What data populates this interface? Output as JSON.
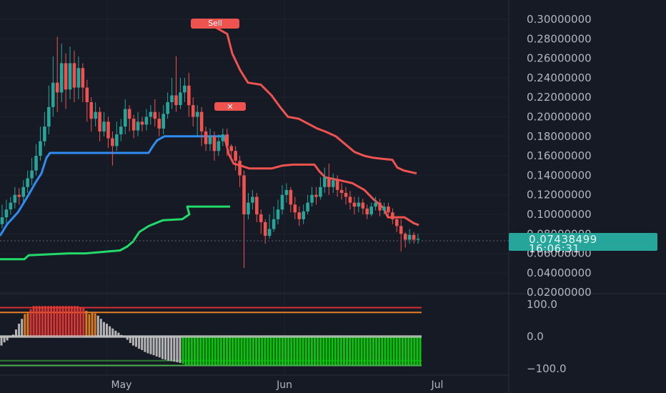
{
  "chart_data": [
    {
      "type": "candlestick",
      "title": "",
      "y_axis": {
        "ticks": [
          "0.30000000",
          "0.28000000",
          "0.26000000",
          "0.24000000",
          "0.22000000",
          "0.20000000",
          "0.18000000",
          "0.16000000",
          "0.14000000",
          "0.12000000",
          "0.10000000",
          "0.08000000",
          "0.06000000",
          "0.04000000",
          "0.02000000"
        ],
        "range": [
          0.016,
          0.322
        ]
      },
      "x_axis": {
        "ticks": [
          "May",
          "Jun",
          "Jul"
        ]
      },
      "last_price": "0.07438499",
      "countdown": "16:06:31",
      "signal_labels": {
        "sell": "Sell",
        "marker": "✕"
      },
      "series": [
        {
          "name": "",
          "color": "#ef5350",
          "role": "upper-band",
          "points": [
            [
              0.292,
              301
            ],
            [
              0.285,
              318
            ],
            [
              0.265,
              325
            ],
            [
              0.248,
              336
            ],
            [
              0.235,
              347
            ],
            [
              0.233,
              365
            ],
            [
              0.222,
              380
            ],
            [
              0.21,
              392
            ],
            [
              0.2,
              403
            ],
            [
              0.198,
              418
            ],
            [
              0.193,
              431
            ],
            [
              0.188,
              444
            ],
            [
              0.185,
              455
            ],
            [
              0.18,
              470
            ],
            [
              0.172,
              483
            ],
            [
              0.164,
              496
            ],
            [
              0.16,
              510
            ],
            [
              0.158,
              522
            ],
            [
              0.157,
              535
            ],
            [
              0.156,
              549
            ],
            [
              0.148,
              556
            ],
            [
              0.145,
              565
            ],
            [
              0.142,
              583
            ]
          ]
        },
        {
          "name": "",
          "color": "#ef5350",
          "role": "stop-line",
          "points": [
            [
              0.18,
              314
            ],
            [
              0.162,
              320
            ],
            [
              0.152,
              327
            ],
            [
              0.15,
              337
            ],
            [
              0.147,
              349
            ],
            [
              0.147,
              380
            ],
            [
              0.15,
              395
            ],
            [
              0.151,
              410
            ],
            [
              0.151,
              440
            ],
            [
              0.144,
              447
            ],
            [
              0.138,
              455
            ],
            [
              0.135,
              475
            ],
            [
              0.132,
              493
            ],
            [
              0.125,
              510
            ],
            [
              0.116,
              522
            ],
            [
              0.107,
              536
            ],
            [
              0.097,
              543
            ],
            [
              0.097,
              566
            ],
            [
              0.091,
              579
            ],
            [
              0.089,
              586
            ]
          ]
        },
        {
          "name": "",
          "color": "#2f8cf0",
          "role": "support-line",
          "points": [
            [
              0.078,
              0
            ],
            [
              0.09,
              10
            ],
            [
              0.102,
              25
            ],
            [
              0.12,
              40
            ],
            [
              0.133,
              50
            ],
            [
              0.142,
              58
            ],
            [
              0.158,
              65
            ],
            [
              0.163,
              70
            ],
            [
              0.163,
              208
            ],
            [
              0.17,
              214
            ],
            [
              0.176,
              220
            ],
            [
              0.18,
              230
            ],
            [
              0.18,
              316
            ]
          ]
        },
        {
          "name": "",
          "color": "#22d96a",
          "role": "trail-line",
          "points": [
            [
              0.054,
              0
            ],
            [
              0.054,
              34
            ],
            [
              0.058,
              40
            ],
            [
              0.06,
              96
            ],
            [
              0.06,
              120
            ],
            [
              0.063,
              168
            ],
            [
              0.067,
              178
            ],
            [
              0.072,
              186
            ],
            [
              0.082,
              195
            ],
            [
              0.088,
              208
            ],
            [
              0.094,
              228
            ],
            [
              0.095,
              255
            ],
            [
              0.1,
              265
            ],
            [
              0.108,
              262
            ],
            [
              0.108,
              322
            ]
          ]
        }
      ],
      "candles": [
        [
          0.09,
          0.097,
          0.11,
          0.086
        ],
        [
          0.097,
          0.105,
          0.115,
          0.091
        ],
        [
          0.105,
          0.112,
          0.118,
          0.1
        ],
        [
          0.112,
          0.12,
          0.128,
          0.106
        ],
        [
          0.12,
          0.118,
          0.127,
          0.11
        ],
        [
          0.118,
          0.128,
          0.135,
          0.113
        ],
        [
          0.128,
          0.137,
          0.145,
          0.122
        ],
        [
          0.137,
          0.145,
          0.158,
          0.13
        ],
        [
          0.145,
          0.16,
          0.172,
          0.14
        ],
        [
          0.16,
          0.175,
          0.19,
          0.155
        ],
        [
          0.175,
          0.19,
          0.205,
          0.17
        ],
        [
          0.19,
          0.21,
          0.232,
          0.182
        ],
        [
          0.21,
          0.235,
          0.262,
          0.2
        ],
        [
          0.235,
          0.225,
          0.282,
          0.205
        ],
        [
          0.225,
          0.255,
          0.275,
          0.215
        ],
        [
          0.255,
          0.228,
          0.265,
          0.208
        ],
        [
          0.228,
          0.255,
          0.272,
          0.218
        ],
        [
          0.255,
          0.23,
          0.268,
          0.215
        ],
        [
          0.23,
          0.25,
          0.262,
          0.218
        ],
        [
          0.25,
          0.23,
          0.255,
          0.215
        ],
        [
          0.23,
          0.215,
          0.238,
          0.195
        ],
        [
          0.215,
          0.198,
          0.22,
          0.185
        ],
        [
          0.198,
          0.205,
          0.215,
          0.19
        ],
        [
          0.205,
          0.185,
          0.21,
          0.175
        ],
        [
          0.185,
          0.195,
          0.205,
          0.18
        ],
        [
          0.195,
          0.178,
          0.2,
          0.168
        ],
        [
          0.178,
          0.17,
          0.185,
          0.15
        ],
        [
          0.17,
          0.182,
          0.195,
          0.165
        ],
        [
          0.182,
          0.19,
          0.198,
          0.175
        ],
        [
          0.19,
          0.208,
          0.218,
          0.182
        ],
        [
          0.208,
          0.198,
          0.212,
          0.185
        ],
        [
          0.198,
          0.186,
          0.202,
          0.178
        ],
        [
          0.186,
          0.195,
          0.205,
          0.18
        ],
        [
          0.195,
          0.192,
          0.2,
          0.185
        ],
        [
          0.192,
          0.2,
          0.208,
          0.186
        ],
        [
          0.2,
          0.205,
          0.212,
          0.192
        ],
        [
          0.205,
          0.198,
          0.218,
          0.19
        ],
        [
          0.198,
          0.188,
          0.205,
          0.18
        ],
        [
          0.188,
          0.203,
          0.212,
          0.182
        ],
        [
          0.203,
          0.215,
          0.225,
          0.198
        ],
        [
          0.215,
          0.222,
          0.24,
          0.208
        ],
        [
          0.222,
          0.212,
          0.262,
          0.205
        ],
        [
          0.212,
          0.225,
          0.24,
          0.208
        ],
        [
          0.225,
          0.232,
          0.24,
          0.215
        ],
        [
          0.232,
          0.212,
          0.245,
          0.2
        ],
        [
          0.212,
          0.2,
          0.22,
          0.19
        ],
        [
          0.2,
          0.205,
          0.212,
          0.18
        ],
        [
          0.205,
          0.185,
          0.21,
          0.17
        ],
        [
          0.185,
          0.172,
          0.19,
          0.165
        ],
        [
          0.172,
          0.18,
          0.188,
          0.165
        ],
        [
          0.18,
          0.165,
          0.185,
          0.155
        ],
        [
          0.165,
          0.175,
          0.182,
          0.16
        ],
        [
          0.175,
          0.182,
          0.188,
          0.17
        ],
        [
          0.182,
          0.17,
          0.188,
          0.16
        ],
        [
          0.17,
          0.165,
          0.172,
          0.155
        ],
        [
          0.165,
          0.155,
          0.17,
          0.145
        ],
        [
          0.155,
          0.14,
          0.16,
          0.128
        ],
        [
          0.14,
          0.1,
          0.145,
          0.045
        ],
        [
          0.1,
          0.112,
          0.122,
          0.095
        ],
        [
          0.112,
          0.118,
          0.125,
          0.105
        ],
        [
          0.118,
          0.1,
          0.122,
          0.092
        ],
        [
          0.1,
          0.092,
          0.105,
          0.08
        ],
        [
          0.092,
          0.078,
          0.095,
          0.07
        ],
        [
          0.078,
          0.085,
          0.1,
          0.075
        ],
        [
          0.085,
          0.095,
          0.108,
          0.082
        ],
        [
          0.095,
          0.105,
          0.115,
          0.09
        ],
        [
          0.105,
          0.12,
          0.13,
          0.1
        ],
        [
          0.12,
          0.125,
          0.132,
          0.112
        ],
        [
          0.125,
          0.11,
          0.128,
          0.102
        ],
        [
          0.11,
          0.102,
          0.118,
          0.095
        ],
        [
          0.102,
          0.095,
          0.108,
          0.088
        ],
        [
          0.095,
          0.103,
          0.11,
          0.09
        ],
        [
          0.103,
          0.112,
          0.12,
          0.1
        ],
        [
          0.112,
          0.12,
          0.128,
          0.108
        ],
        [
          0.12,
          0.118,
          0.128,
          0.11
        ],
        [
          0.118,
          0.128,
          0.138,
          0.115
        ],
        [
          0.128,
          0.138,
          0.148,
          0.122
        ],
        [
          0.138,
          0.128,
          0.152,
          0.12
        ],
        [
          0.128,
          0.135,
          0.142,
          0.122
        ],
        [
          0.135,
          0.125,
          0.14,
          0.118
        ],
        [
          0.125,
          0.122,
          0.132,
          0.115
        ],
        [
          0.122,
          0.118,
          0.128,
          0.11
        ],
        [
          0.118,
          0.112,
          0.124,
          0.105
        ],
        [
          0.112,
          0.108,
          0.118,
          0.1
        ],
        [
          0.108,
          0.112,
          0.118,
          0.102
        ],
        [
          0.112,
          0.106,
          0.116,
          0.1
        ],
        [
          0.106,
          0.1,
          0.11,
          0.095
        ],
        [
          0.1,
          0.108,
          0.112,
          0.098
        ],
        [
          0.108,
          0.112,
          0.118,
          0.104
        ],
        [
          0.112,
          0.104,
          0.116,
          0.098
        ],
        [
          0.104,
          0.108,
          0.112,
          0.1
        ],
        [
          0.108,
          0.102,
          0.112,
          0.096
        ],
        [
          0.102,
          0.095,
          0.106,
          0.09
        ],
        [
          0.095,
          0.088,
          0.098,
          0.082
        ],
        [
          0.088,
          0.08,
          0.095,
          0.062
        ],
        [
          0.08,
          0.074,
          0.082,
          0.066
        ],
        [
          0.074,
          0.079,
          0.085,
          0.07
        ],
        [
          0.079,
          0.074,
          0.082,
          0.07
        ],
        [
          0.074,
          0.075,
          0.08,
          0.07
        ]
      ]
    },
    {
      "type": "bar",
      "title": "",
      "y_axis": {
        "ticks": [
          "100.0",
          "0.0",
          "−100.0"
        ],
        "range": [
          -120,
          120
        ]
      },
      "levels": [
        {
          "value": 90,
          "color": "#d32f2f"
        },
        {
          "value": 75,
          "color": "#e67e22"
        },
        {
          "value": 0,
          "color": "#9e9e9e"
        },
        {
          "value": -75,
          "color": "#2e7d32"
        },
        {
          "value": -90,
          "color": "#4caf50"
        }
      ],
      "colors": {
        "overbought": "#e53935",
        "warm": "#e67e22",
        "neutral": "#bdbdbd",
        "oversold": "#00d400"
      },
      "values": [
        -28,
        -18,
        -12,
        0,
        6,
        22,
        40,
        55,
        70,
        72,
        85,
        95,
        95,
        95,
        95,
        95,
        95,
        95,
        95,
        95,
        95,
        95,
        95,
        95,
        95,
        95,
        95,
        92,
        88,
        80,
        70,
        75,
        72,
        65,
        55,
        45,
        40,
        32,
        25,
        18,
        12,
        5,
        0,
        -10,
        -20,
        -28,
        -32,
        -38,
        -42,
        -48,
        -52,
        -55,
        -58,
        -62,
        -65,
        -70,
        -72,
        -75,
        -76,
        -78,
        -80,
        -82,
        -85,
        -88,
        -88,
        -88,
        -88,
        -88,
        -88,
        -88,
        -88,
        -88,
        -88,
        -88,
        -88,
        -88,
        -88,
        -88,
        -88,
        -88,
        -88,
        -88,
        -88,
        -88,
        -88,
        -88,
        -88,
        -88,
        -88,
        -88,
        -88,
        -88,
        -88,
        -88,
        -88,
        -88,
        -88,
        -88,
        -88,
        -88,
        -88,
        -88,
        -88,
        -88,
        -88,
        -88,
        -88,
        -88,
        -88,
        -88,
        -88,
        -88,
        -88,
        -88,
        -88,
        -88,
        -88,
        -88,
        -88,
        -88,
        -88,
        -88,
        -88,
        -88,
        -88,
        -88,
        -88,
        -88,
        -88,
        -88,
        -88,
        -88,
        -88,
        -88,
        -88,
        -88,
        -88,
        -88,
        -88,
        -88,
        -88,
        -88,
        -88,
        -88
      ]
    }
  ]
}
